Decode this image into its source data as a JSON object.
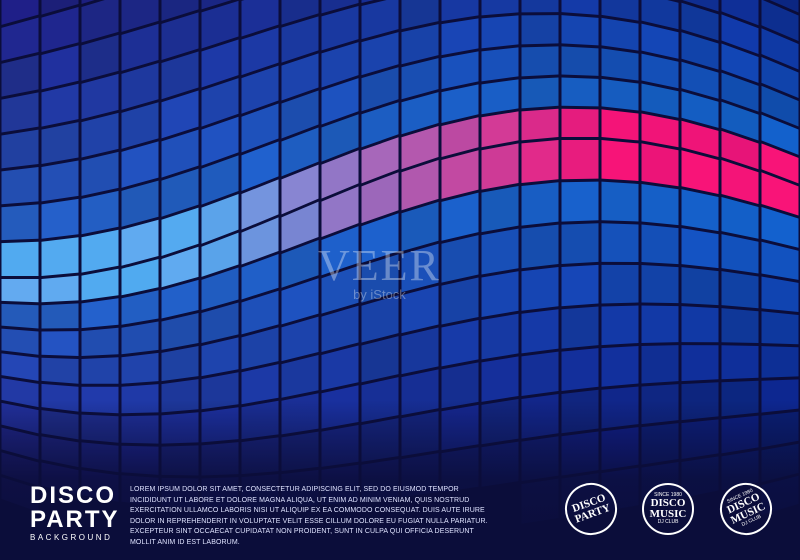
{
  "branding": {
    "title_line1": "DISCO",
    "title_line2": "PARTY",
    "subtitle": "BACKGROUND"
  },
  "body_text": [
    "LOREM IPSUM DOLOR SIT AMET, CONSECTETUR ADIPISCING ELIT, SED DO EIUSMOD TEMPOR",
    "INCIDIDUNT UT LABORE ET DOLORE MAGNA ALIQUA, UT ENIM AD MINIM VENIAM, QUIS NOSTRUD",
    "EXERCITATION ULLAMCO LABORIS NISI UT ALIQUIP EX EA COMMODO CONSEQUAT. DUIS AUTE IRURE",
    "DOLOR IN REPREHENDERIT IN VOLUPTATE VELIT ESSE CILLUM DOLORE EU FUGIAT NULLA PARIATUR.",
    "EXCEPTEUR SINT OCCAECAT CUPIDATAT NON PROIDENT, SUNT IN CULPA QUI OFFICIA DESERUNT",
    "MOLLIT ANIM ID EST LABORUM."
  ],
  "badges": [
    {
      "line1": "DISCO",
      "line2": "PARTY"
    },
    {
      "top": "SINCE 1980",
      "line1": "DISCO",
      "line2": "MUSIC",
      "bottom": "DJ CLUB"
    },
    {
      "top": "SINCE 1980",
      "line1": "DISCO",
      "line2": "MUSIC",
      "bottom": "DJ CLUB"
    }
  ],
  "watermark": {
    "main": "VEER",
    "sub": "by iStock"
  }
}
